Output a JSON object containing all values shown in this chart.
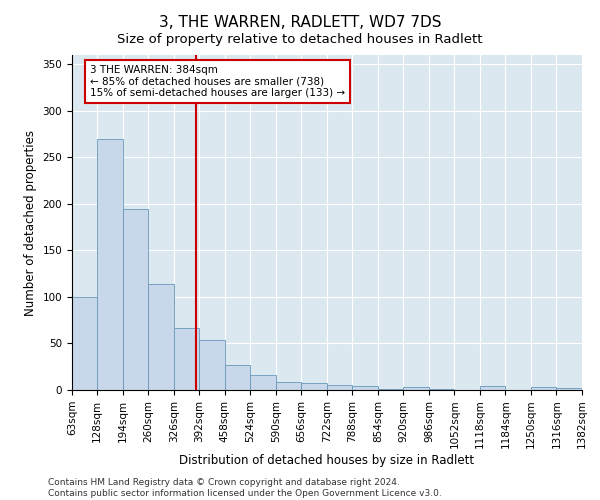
{
  "title": "3, THE WARREN, RADLETT, WD7 7DS",
  "subtitle": "Size of property relative to detached houses in Radlett",
  "xlabel": "Distribution of detached houses by size in Radlett",
  "ylabel": "Number of detached properties",
  "bin_edges": [
    63,
    128,
    194,
    260,
    326,
    392,
    458,
    524,
    590,
    656,
    722,
    788,
    854,
    920,
    986,
    1052,
    1118,
    1184,
    1250,
    1316,
    1382
  ],
  "bar_heights": [
    100,
    270,
    195,
    114,
    67,
    54,
    27,
    16,
    9,
    8,
    5,
    4,
    1,
    3,
    1,
    0,
    4,
    0,
    3,
    2
  ],
  "bar_color": "#c8d8ea",
  "bar_edge_color": "#6699bb",
  "red_line_x": 384,
  "annotation_line1": "3 THE WARREN: 384sqm",
  "annotation_line2": "← 85% of detached houses are smaller (738)",
  "annotation_line3": "15% of semi-detached houses are larger (133) →",
  "annotation_box_color": "white",
  "annotation_box_edge_color": "#cc0000",
  "red_line_color": "#cc0000",
  "ylim": [
    0,
    360
  ],
  "yticks": [
    0,
    50,
    100,
    150,
    200,
    250,
    300,
    350
  ],
  "fig_bg_color": "#ffffff",
  "plot_bg_color": "#dce8f0",
  "footer_text": "Contains HM Land Registry data © Crown copyright and database right 2024.\nContains public sector information licensed under the Open Government Licence v3.0.",
  "title_fontsize": 11,
  "subtitle_fontsize": 9.5,
  "axis_label_fontsize": 8.5,
  "tick_fontsize": 7.5,
  "footer_fontsize": 6.5
}
